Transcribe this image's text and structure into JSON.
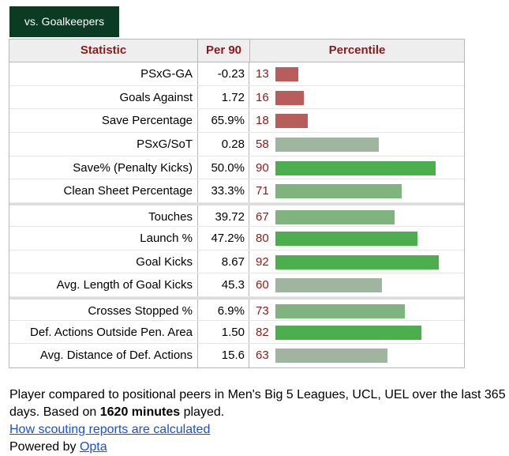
{
  "tab": {
    "label": "vs. Goalkeepers"
  },
  "table": {
    "headers": {
      "statistic": "Statistic",
      "per90": "Per 90",
      "percentile": "Percentile"
    },
    "groups": [
      [
        {
          "stat": "PSxG-GA",
          "per90": "-0.23",
          "percentile": "13",
          "tier": "low"
        },
        {
          "stat": "Goals Against",
          "per90": "1.72",
          "percentile": "16",
          "tier": "low"
        },
        {
          "stat": "Save Percentage",
          "per90": "65.9%",
          "percentile": "18",
          "tier": "low"
        },
        {
          "stat": "PSxG/SoT",
          "per90": "0.28",
          "percentile": "58",
          "tier": "mid"
        },
        {
          "stat": "Save% (Penalty Kicks)",
          "per90": "50.0%",
          "percentile": "90",
          "tier": "high"
        },
        {
          "stat": "Clean Sheet Percentage",
          "per90": "33.3%",
          "percentile": "71",
          "tier": "good"
        }
      ],
      [
        {
          "stat": "Touches",
          "per90": "39.72",
          "percentile": "67",
          "tier": "good"
        },
        {
          "stat": "Launch %",
          "per90": "47.2%",
          "percentile": "80",
          "tier": "high"
        },
        {
          "stat": "Goal Kicks",
          "per90": "8.67",
          "percentile": "92",
          "tier": "high"
        },
        {
          "stat": "Avg. Length of Goal Kicks",
          "per90": "45.3",
          "percentile": "60",
          "tier": "mid"
        }
      ],
      [
        {
          "stat": "Crosses Stopped %",
          "per90": "6.9%",
          "percentile": "73",
          "tier": "good"
        },
        {
          "stat": "Def. Actions Outside Pen. Area",
          "per90": "1.50",
          "percentile": "82",
          "tier": "high"
        },
        {
          "stat": "Avg. Distance of Def. Actions",
          "per90": "15.6",
          "percentile": "63",
          "tier": "mid"
        }
      ]
    ]
  },
  "colors": {
    "low": "#b85c5c",
    "mid": "#9fb59f",
    "good": "#7fb47f",
    "high": "#4cae4c",
    "header_text": "#8b1a1a",
    "tab_bg": "#0b3b23"
  },
  "footer": {
    "text1": "Player compared to positional peers in Men's Big 5 Leagues, UCL, UEL over the last 365 days. Based on ",
    "minutes": "1620 minutes",
    "text2": " played.",
    "link_label": "How scouting reports are calculated",
    "powered_prefix": "Powered by ",
    "powered_link": "Opta"
  }
}
